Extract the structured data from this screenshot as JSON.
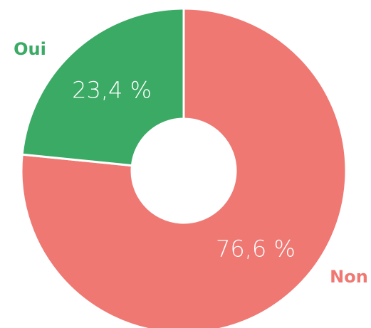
{
  "chart_data": {
    "type": "donut",
    "categories": [
      "Non",
      "Oui"
    ],
    "values": [
      76.6,
      23.4
    ],
    "value_labels": [
      "76,6 %",
      "23,4 %"
    ],
    "colors": [
      "#ef7873",
      "#3aaa64"
    ]
  }
}
